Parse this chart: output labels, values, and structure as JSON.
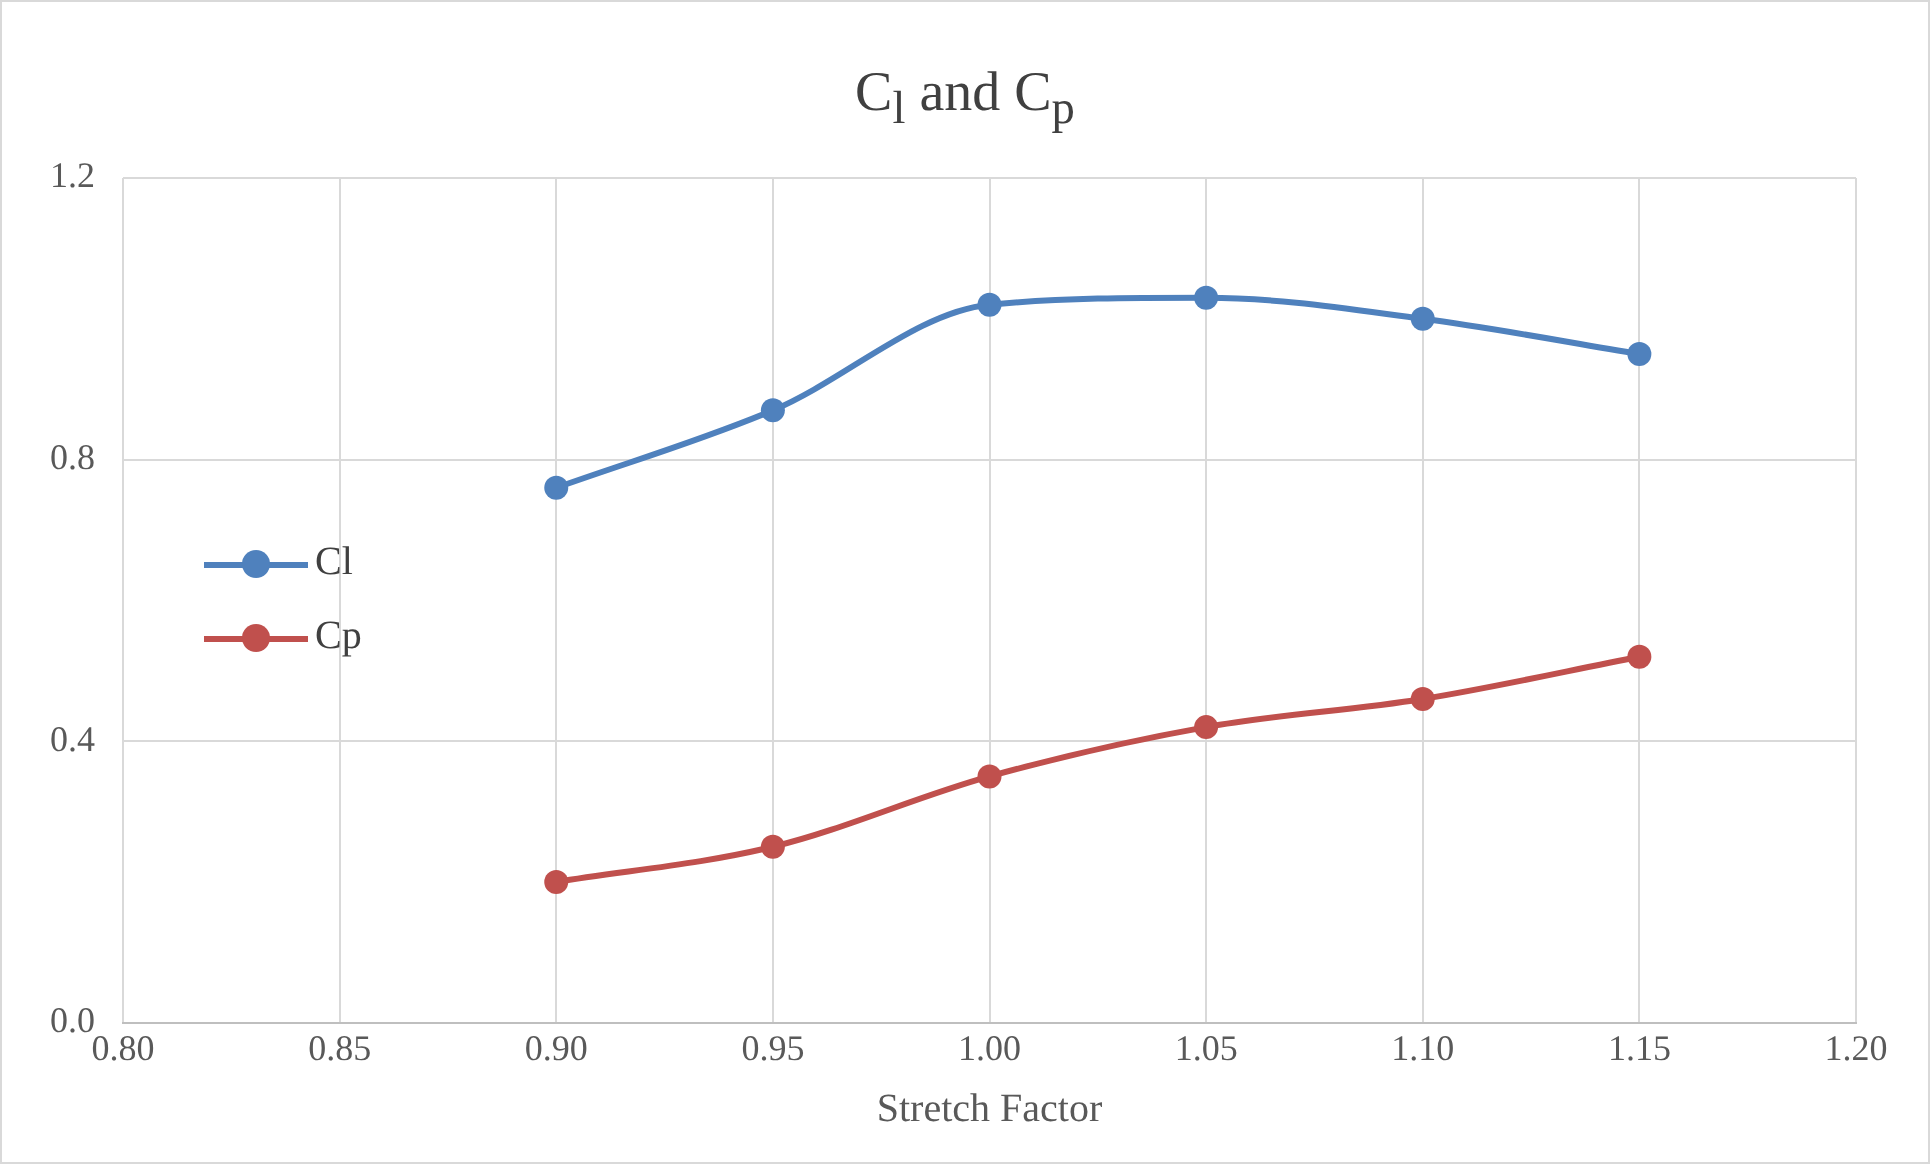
{
  "chart_data": {
    "type": "line",
    "title": "C$_{l}$ and C$_{p}$",
    "xlabel": "Stretch Factor",
    "x": [
      0.9,
      0.95,
      1.0,
      1.05,
      1.1,
      1.15
    ],
    "series": [
      {
        "name": "Cl",
        "color": "#4f81bd",
        "values": [
          0.76,
          0.87,
          1.02,
          1.03,
          1.0,
          0.95
        ]
      },
      {
        "name": "Cp",
        "color": "#c0504d",
        "values": [
          0.2,
          0.25,
          0.35,
          0.42,
          0.46,
          0.52
        ]
      }
    ],
    "xlim": [
      0.8,
      1.2
    ],
    "xticks": [
      {
        "value": 0.8,
        "label": "0.80"
      },
      {
        "value": 0.85,
        "label": "0.85"
      },
      {
        "value": 0.9,
        "label": "0.90"
      },
      {
        "value": 0.95,
        "label": "0.95"
      },
      {
        "value": 1.0,
        "label": "1.00"
      },
      {
        "value": 1.05,
        "label": "1.05"
      },
      {
        "value": 1.1,
        "label": "1.10"
      },
      {
        "value": 1.15,
        "label": "1.15"
      },
      {
        "value": 1.2,
        "label": "1.20"
      }
    ],
    "ylim": [
      0,
      1.2
    ],
    "yticks": [
      {
        "value": 0,
        "label": "0.0"
      },
      {
        "value": 0.4,
        "label": "0.4"
      },
      {
        "value": 0.8,
        "label": "0.8"
      },
      {
        "value": 1.2,
        "label": "1.2"
      }
    ],
    "grid": true,
    "legend": "left",
    "marker": "circle",
    "line_style": "solid"
  }
}
